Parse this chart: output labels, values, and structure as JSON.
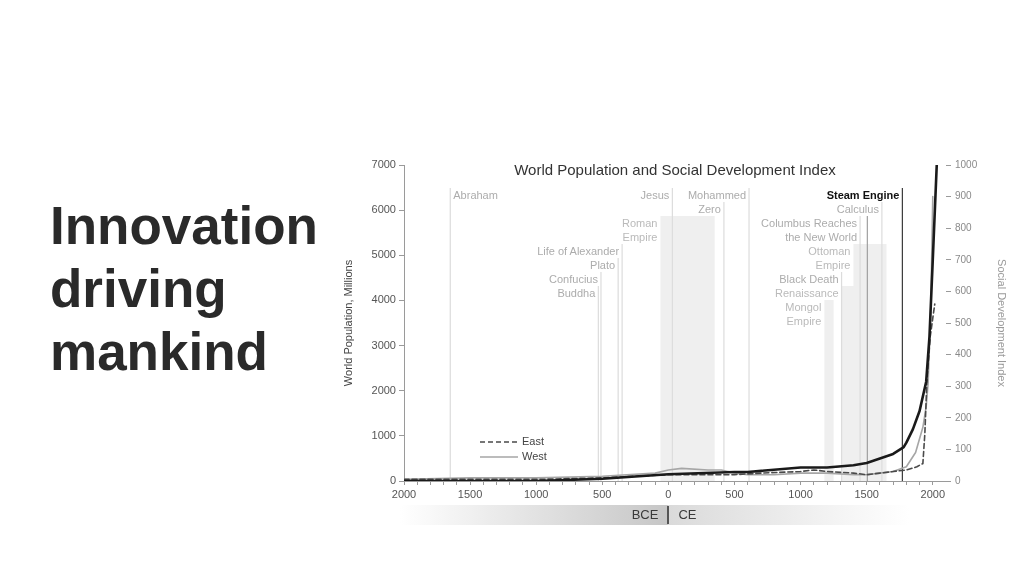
{
  "chart_data": {
    "type": "line",
    "title": "World Population and Social Development Index",
    "ylabel": "World Population, Millions",
    "y2label": "Social Development Index",
    "xlim": [
      -2000,
      2100
    ],
    "xticks": [
      {
        "value": -2000,
        "label": "2000"
      },
      {
        "value": -1900,
        "label": null
      },
      {
        "value": -1800,
        "label": null
      },
      {
        "value": -1700,
        "label": null
      },
      {
        "value": -1600,
        "label": null
      },
      {
        "value": -1500,
        "label": "1500"
      },
      {
        "value": -1400,
        "label": null
      },
      {
        "value": -1300,
        "label": null
      },
      {
        "value": -1200,
        "label": null
      },
      {
        "value": -1100,
        "label": null
      },
      {
        "value": -1000,
        "label": "1000"
      },
      {
        "value": -900,
        "label": null
      },
      {
        "value": -800,
        "label": null
      },
      {
        "value": -700,
        "label": null
      },
      {
        "value": -600,
        "label": null
      },
      {
        "value": -500,
        "label": "500"
      },
      {
        "value": -400,
        "label": null
      },
      {
        "value": -300,
        "label": null
      },
      {
        "value": -200,
        "label": null
      },
      {
        "value": -100,
        "label": null
      },
      0,
      {
        "value": 100,
        "label": null
      },
      {
        "value": 200,
        "label": null
      },
      {
        "value": 300,
        "label": null
      },
      {
        "value": 400,
        "label": null
      },
      500,
      {
        "value": 600,
        "label": null
      },
      {
        "value": 700,
        "label": null
      },
      {
        "value": 800,
        "label": null
      },
      {
        "value": 900,
        "label": null
      },
      1000,
      {
        "value": 1100,
        "label": null
      },
      {
        "value": 1200,
        "label": null
      },
      {
        "value": 1300,
        "label": null
      },
      {
        "value": 1400,
        "label": null
      },
      1500,
      {
        "value": 1600,
        "label": null
      },
      {
        "value": 1700,
        "label": null
      },
      {
        "value": 1800,
        "label": null
      },
      {
        "value": 1900,
        "label": null
      },
      2000
    ],
    "ylim": [
      0,
      7000
    ],
    "yticks": [
      0,
      1000,
      2000,
      3000,
      4000,
      5000,
      6000,
      7000
    ],
    "y2lim": [
      0,
      1000
    ],
    "y2ticks": [
      0,
      100,
      200,
      300,
      400,
      500,
      600,
      700,
      800,
      900,
      1000
    ],
    "series": [
      {
        "color": "#1a1a1a",
        "x": [
          -2000,
          -1500,
          -1000,
          -500,
          0,
          500,
          600,
          1000,
          1200,
          1400,
          1500,
          1600,
          1700,
          1780,
          1800,
          1850,
          1900,
          1950,
          1975,
          2000,
          2030
        ],
        "values": [
          0,
          0,
          0,
          50,
          150,
          200,
          200,
          300,
          300,
          350,
          400,
          500,
          600,
          750,
          850,
          1150,
          1550,
          2200,
          3200,
          4900,
          7000
        ]
      },
      {
        "name": "East",
        "color": "#4a4a4a",
        "axis": "y2",
        "line_style": "dashed",
        "x": [
          -2000,
          -1000,
          -500,
          0,
          500,
          700,
          1000,
          1100,
          1200,
          1400,
          1500,
          1600,
          1700,
          1800,
          1880,
          1900,
          1925,
          1940,
          1955,
          1980,
          2015
        ],
        "values": [
          5,
          5,
          10,
          20,
          20,
          25,
          30,
          35,
          30,
          25,
          20,
          25,
          30,
          35,
          45,
          50,
          55,
          150,
          310,
          455,
          560
        ]
      },
      {
        "name": "West",
        "color": "#a6a6a6",
        "axis": "y2",
        "x": [
          -2000,
          -1500,
          -1000,
          -500,
          -100,
          0,
          100,
          300,
          400,
          500,
          600,
          800,
          1000,
          1200,
          1400,
          1500,
          1600,
          1700,
          1800,
          1870,
          1925,
          1950,
          1965,
          1985,
          2000
        ],
        "values": [
          5,
          10,
          10,
          15,
          25,
          35,
          40,
          35,
          35,
          25,
          20,
          20,
          25,
          25,
          20,
          20,
          25,
          30,
          45,
          90,
          170,
          235,
          310,
          550,
          900
        ]
      }
    ],
    "legend": "bottom left",
    "ref_lines": [
      {
        "axis": "x",
        "value": -1650,
        "label": "Abraham",
        "color": "#dcdcdc"
      },
      {
        "axis": "x",
        "value": -510,
        "label": "Confucius",
        "color": "#dcdcdc"
      },
      {
        "axis": "x",
        "value": -530,
        "label": "Buddha",
        "color": "#dcdcdc"
      },
      {
        "axis": "x",
        "value": -380,
        "label": "Plato",
        "color": "#dcdcdc"
      },
      {
        "axis": "x",
        "value": -350,
        "label": "Life of Alexander",
        "color": "#dcdcdc"
      },
      {
        "axis": "x",
        "value": 30,
        "label": "Jesus",
        "color": "#dcdcdc"
      },
      {
        "axis": "x",
        "value": 420,
        "label": "Zero",
        "color": "#dcdcdc"
      },
      {
        "axis": "x",
        "value": 610,
        "label": "Mohammed",
        "color": "#dcdcdc"
      },
      {
        "axis": "x",
        "value": 1310,
        "label": "Black Death",
        "color": "#dcdcdc"
      },
      {
        "axis": "x",
        "value": 1450,
        "label": "Columbus Reaches the New World",
        "color": "#dcdcdc"
      },
      {
        "axis": "x",
        "value": 1615,
        "label": "Calculus",
        "color": "#dcdcdc"
      },
      {
        "axis": "x",
        "value": 1505,
        "color": "#a0a0a0"
      },
      {
        "axis": "x",
        "value": 1770,
        "label": "Steam Engine",
        "color": "#3a3a3a"
      }
    ],
    "bands": [
      {
        "axis": "x",
        "from": -60,
        "to": 350,
        "label": "Roman Empire",
        "color": "#efefef"
      },
      {
        "axis": "x",
        "from": 1180,
        "to": 1250,
        "label": "Mongol Empire",
        "color": "#efefef"
      },
      {
        "axis": "x",
        "from": 1310,
        "to": 1525,
        "label": "Renaissance",
        "color": "#efefef"
      },
      {
        "axis": "x",
        "from": 1400,
        "to": 1650,
        "label": "Ottoman Empire",
        "color": "#efefef"
      }
    ],
    "annotations": [
      "Innovation driving mankind",
      "BCE",
      "CE"
    ]
  }
}
